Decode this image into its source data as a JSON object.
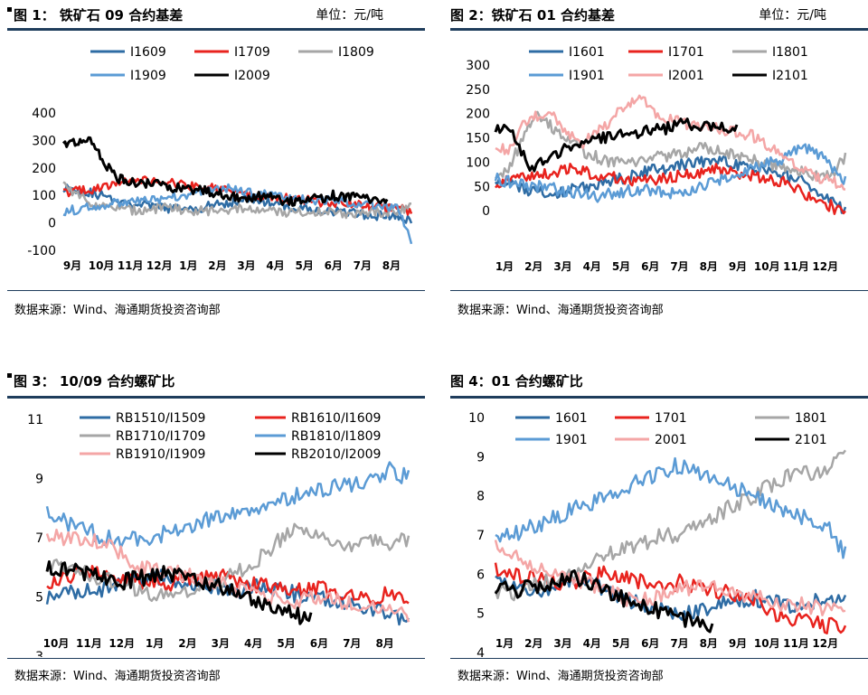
{
  "charts": [
    {
      "title": "图 1： 铁矿石 09 合约基差",
      "unit": "单位：元/吨",
      "source": "数据来源：Wind、海通期货投资咨询部",
      "chart_data": {
        "type": "line",
        "ylim": [
          -100,
          400
        ],
        "yticks": [
          "400",
          "300",
          "200",
          "100",
          "0",
          "-100"
        ],
        "ytick_values": [
          400,
          300,
          200,
          100,
          0,
          -100
        ],
        "xticks": [
          "9月",
          "10月",
          "11月",
          "12月",
          "1月",
          "2月",
          "3月",
          "4月",
          "5月",
          "6月",
          "7月",
          "8月"
        ],
        "legend": [
          "I1609",
          "I1709",
          "I1809",
          "I1909",
          "I2009"
        ],
        "series": [
          {
            "name": "I1609",
            "color": "#2e6ca4",
            "width": 2.5,
            "start": 0,
            "end": 1,
            "values": [
              130,
              120,
              110,
              95,
              80,
              70,
              60,
              55,
              50,
              50,
              60,
              70,
              80,
              90,
              75,
              65,
              55,
              50,
              45,
              40,
              35,
              30,
              25,
              20,
              10
            ]
          },
          {
            "name": "I1709",
            "color": "#e8231e",
            "width": 2.5,
            "start": 0,
            "end": 1,
            "values": [
              110,
              115,
              120,
              130,
              150,
              160,
              155,
              145,
              140,
              135,
              130,
              120,
              110,
              100,
              95,
              90,
              85,
              80,
              75,
              70,
              65,
              60,
              55,
              50,
              45
            ]
          },
          {
            "name": "I1809",
            "color": "#a6a6a6",
            "width": 2.5,
            "start": 0,
            "end": 1,
            "values": [
              145,
              100,
              70,
              55,
              50,
              45,
              50,
              55,
              50,
              45,
              45,
              50,
              50,
              45,
              45,
              40,
              40,
              40,
              40,
              35,
              35,
              35,
              40,
              45,
              55
            ]
          },
          {
            "name": "I1909",
            "color": "#5b9bd5",
            "width": 2.5,
            "start": 0,
            "end": 1,
            "values": [
              40,
              50,
              60,
              70,
              70,
              75,
              80,
              90,
              100,
              110,
              120,
              130,
              120,
              110,
              100,
              95,
              90,
              85,
              80,
              80,
              75,
              70,
              65,
              55,
              -70
            ]
          },
          {
            "name": "I2009",
            "color": "#000000",
            "width": 3,
            "start": 0,
            "end": 0.93,
            "values": [
              280,
              290,
              300,
              220,
              160,
              150,
              145,
              140,
              130,
              125,
              120,
              110,
              100,
              95,
              90,
              100,
              85,
              80,
              90,
              85,
              100,
              95,
              90,
              85,
              80
            ]
          }
        ]
      }
    },
    {
      "title": "图 2：铁矿石 01 合约基差",
      "unit": "单位：元/吨",
      "source": "数据来源：Wind、海通期货投资咨询部",
      "chart_data": {
        "type": "line",
        "ylim": [
          -50,
          300
        ],
        "yticks": [
          "300",
          "250",
          "200",
          "150",
          "100",
          "50",
          "0"
        ],
        "ytick_values": [
          300,
          250,
          200,
          150,
          100,
          50,
          0
        ],
        "xticks": [
          "1月",
          "2月",
          "3月",
          "4月",
          "5月",
          "6月",
          "7月",
          "8月",
          "9月",
          "10月",
          "11月",
          "12月"
        ],
        "legend": [
          "I1601",
          "I1701",
          "I1801",
          "I1901",
          "I2001",
          "I2101"
        ],
        "series": [
          {
            "name": "I1601",
            "color": "#2e6ca4",
            "width": 2.5,
            "start": 0,
            "end": 1,
            "values": [
              60,
              55,
              45,
              40,
              35,
              40,
              50,
              55,
              60,
              70,
              80,
              85,
              90,
              95,
              100,
              110,
              100,
              90,
              85,
              80,
              70,
              60,
              40,
              20,
              0
            ]
          },
          {
            "name": "I1701",
            "color": "#e8231e",
            "width": 2.5,
            "start": 0,
            "end": 1,
            "values": [
              55,
              60,
              70,
              75,
              80,
              85,
              80,
              75,
              70,
              65,
              60,
              65,
              70,
              75,
              80,
              85,
              80,
              75,
              70,
              65,
              60,
              40,
              20,
              10,
              -10
            ]
          },
          {
            "name": "I1801",
            "color": "#a6a6a6",
            "width": 2.5,
            "start": 0,
            "end": 1,
            "values": [
              70,
              90,
              160,
              200,
              170,
              150,
              120,
              110,
              100,
              95,
              105,
              110,
              115,
              120,
              130,
              125,
              120,
              110,
              100,
              95,
              90,
              80,
              70,
              75,
              110
            ]
          },
          {
            "name": "I1901",
            "color": "#5b9bd5",
            "width": 2.5,
            "start": 0,
            "end": 1,
            "values": [
              65,
              60,
              55,
              50,
              45,
              40,
              35,
              30,
              35,
              40,
              45,
              40,
              35,
              40,
              50,
              60,
              70,
              80,
              90,
              100,
              110,
              130,
              120,
              90,
              60
            ]
          },
          {
            "name": "I2001",
            "color": "#f4a6a6",
            "width": 2.5,
            "start": 0,
            "end": 1,
            "values": [
              120,
              130,
              180,
              200,
              190,
              160,
              140,
              160,
              190,
              220,
              235,
              200,
              190,
              180,
              175,
              170,
              165,
              160,
              150,
              130,
              110,
              90,
              70,
              60,
              50
            ]
          },
          {
            "name": "I2101",
            "color": "#000000",
            "width": 3,
            "start": 0,
            "end": 0.69,
            "values": [
              170,
              160,
              90,
              100,
              130,
              140,
              150,
              155,
              160,
              165,
              170,
              180,
              175,
              170,
              165
            ]
          }
        ]
      }
    },
    {
      "title": "图 3： 10/09 合约螺矿比",
      "source": "数据来源：Wind、海通期货投资咨询部",
      "chart_data": {
        "type": "line",
        "ylim": [
          3,
          11
        ],
        "yticks": [
          "11",
          "9",
          "7",
          "5",
          "3"
        ],
        "ytick_values": [
          11,
          9,
          7,
          5,
          3
        ],
        "xticks": [
          "10月",
          "11月",
          "12月",
          "1月",
          "2月",
          "3月",
          "4月",
          "5月",
          "6月",
          "7月",
          "8月"
        ],
        "legend": [
          "RB1510/I1509",
          "RB1610/I1609",
          "RB1710/I1709",
          "RB1810/I1809",
          "RB1910/I1909",
          "RB2010/I2009"
        ],
        "series": [
          {
            "name": "RB1510/I1509",
            "color": "#2e6ca4",
            "width": 2.5,
            "start": 0,
            "end": 1,
            "values": [
              5.0,
              5.1,
              5.2,
              5.3,
              5.5,
              5.6,
              5.7,
              5.5,
              5.4,
              5.3,
              5.2,
              5.4,
              5.3,
              5.1,
              5.0,
              4.9,
              4.8,
              4.6,
              4.4,
              4.1
            ]
          },
          {
            "name": "RB1610/I1609",
            "color": "#e8231e",
            "width": 2.5,
            "start": 0,
            "end": 1,
            "values": [
              5.5,
              5.7,
              5.8,
              5.9,
              5.6,
              5.5,
              5.4,
              5.5,
              5.6,
              5.7,
              5.5,
              5.4,
              5.3,
              5.2,
              5.3,
              5.2,
              5.1,
              5.0,
              5.1,
              4.7
            ]
          },
          {
            "name": "RB1710/I1709",
            "color": "#a6a6a6",
            "width": 2.5,
            "start": 0,
            "end": 1,
            "values": [
              6.2,
              6.0,
              5.8,
              5.6,
              5.5,
              5.2,
              5.1,
              5.2,
              5.4,
              5.5,
              5.8,
              6.2,
              6.8,
              7.2,
              7.0,
              6.8,
              6.7,
              6.9,
              6.8,
              7.0
            ]
          },
          {
            "name": "RB1810/I1809",
            "color": "#5b9bd5",
            "width": 2.5,
            "start": 0,
            "end": 1,
            "values": [
              7.8,
              7.5,
              7.3,
              7.0,
              6.9,
              7.0,
              7.1,
              7.3,
              7.5,
              7.7,
              7.9,
              8.0,
              8.2,
              8.4,
              8.6,
              8.7,
              8.8,
              9.0,
              9.3,
              9.0
            ]
          },
          {
            "name": "RB1910/I1909",
            "color": "#f4a6a6",
            "width": 2.5,
            "start": 0,
            "end": 1,
            "values": [
              7.1,
              7.0,
              7.0,
              6.8,
              6.4,
              6.0,
              5.9,
              5.8,
              5.6,
              5.5,
              5.2,
              5.1,
              5.0,
              4.9,
              5.0,
              4.9,
              4.8,
              4.7,
              4.6,
              4.3
            ]
          },
          {
            "name": "RB2010/I2009",
            "color": "#000000",
            "width": 3,
            "start": 0,
            "end": 0.73,
            "values": [
              6.0,
              5.9,
              5.8,
              5.7,
              5.5,
              5.6,
              5.7,
              5.8,
              5.6,
              5.5,
              5.3,
              5.0,
              4.8,
              4.6,
              4.4,
              4.2
            ]
          }
        ]
      }
    },
    {
      "title": "图 4：01 合约螺矿比",
      "source": "数据来源：Wind、海通期货投资咨询部",
      "chart_data": {
        "type": "line",
        "ylim": [
          4,
          10
        ],
        "yticks": [
          "10",
          "9",
          "8",
          "7",
          "6",
          "5",
          "4"
        ],
        "ytick_values": [
          10,
          9,
          8,
          7,
          6,
          5,
          4
        ],
        "xticks": [
          "1月",
          "2月",
          "3月",
          "4月",
          "5月",
          "6月",
          "7月",
          "8月",
          "9月",
          "10月",
          "11月",
          "12月"
        ],
        "legend": [
          "1601",
          "1701",
          "1801",
          "1901",
          "2001",
          "2101"
        ],
        "series": [
          {
            "name": "1601",
            "color": "#2e6ca4",
            "width": 2.5,
            "start": 0,
            "end": 1,
            "values": [
              5.8,
              5.6,
              5.5,
              5.6,
              5.8,
              5.9,
              5.6,
              5.4,
              5.2,
              5.1,
              5.0,
              5.1,
              5.2,
              5.3,
              5.4,
              5.3,
              5.2,
              5.3,
              5.4,
              5.3
            ]
          },
          {
            "name": "1701",
            "color": "#e8231e",
            "width": 2.5,
            "start": 0,
            "end": 1,
            "values": [
              6.1,
              6.0,
              5.9,
              5.8,
              5.8,
              5.9,
              6.0,
              5.9,
              5.8,
              5.7,
              5.8,
              5.7,
              5.6,
              5.5,
              5.4,
              5.0,
              4.9,
              4.8,
              4.7,
              4.6
            ]
          },
          {
            "name": "1801",
            "color": "#a6a6a6",
            "width": 2.5,
            "start": 0,
            "end": 1,
            "values": [
              5.6,
              5.5,
              5.7,
              5.9,
              6.0,
              6.2,
              6.5,
              6.7,
              6.8,
              7.0,
              7.0,
              7.2,
              7.5,
              7.8,
              8.0,
              8.3,
              8.5,
              8.6,
              8.7,
              9.1
            ]
          },
          {
            "name": "1901",
            "color": "#5b9bd5",
            "width": 2.5,
            "start": 0,
            "end": 1,
            "values": [
              6.9,
              7.0,
              7.2,
              7.4,
              7.6,
              7.8,
              8.0,
              8.2,
              8.4,
              8.6,
              8.8,
              8.6,
              8.4,
              8.2,
              8.0,
              7.8,
              7.6,
              7.4,
              7.2,
              6.5
            ]
          },
          {
            "name": "2001",
            "color": "#f4a6a6",
            "width": 2.5,
            "start": 0,
            "end": 1,
            "values": [
              6.7,
              6.5,
              6.2,
              6.0,
              5.9,
              5.8,
              5.6,
              5.4,
              5.3,
              5.5,
              5.6,
              5.7,
              5.6,
              5.5,
              5.4,
              5.3,
              5.2,
              5.2,
              5.1,
              5.0
            ]
          },
          {
            "name": "2101",
            "color": "#000000",
            "width": 3,
            "start": 0,
            "end": 0.62,
            "values": [
              5.7,
              5.6,
              5.7,
              5.8,
              5.9,
              5.8,
              5.5,
              5.2,
              5.1,
              4.9,
              4.8,
              4.6
            ]
          }
        ]
      }
    }
  ]
}
